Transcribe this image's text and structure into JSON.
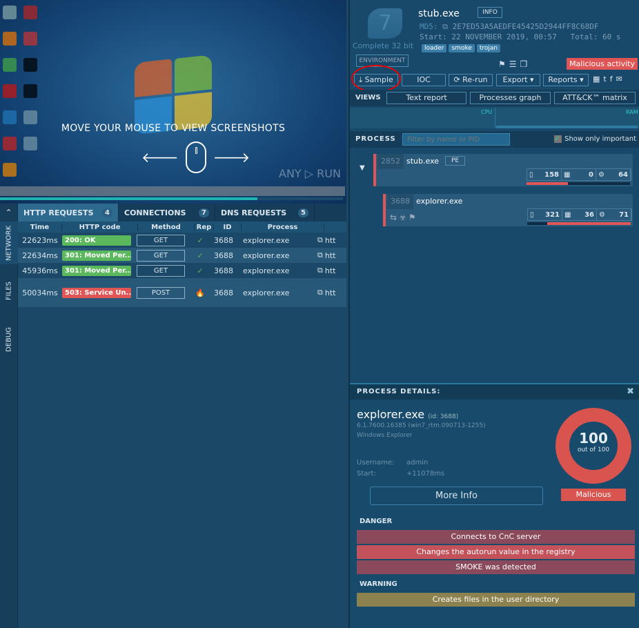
{
  "screenshot": {
    "overlay_text": "MOVE YOUR MOUSE TO VIEW SCREENSHOTS",
    "watermark": "ANY RUN",
    "progress_percent": 75
  },
  "sidebar": {
    "collapse_icon": "chevron-up-icon",
    "items": [
      {
        "label": "NETWORK"
      },
      {
        "label": "FILES"
      },
      {
        "label": "DEBUG"
      }
    ]
  },
  "network": {
    "tabs": [
      {
        "label": "HTTP REQUESTS",
        "count": "4"
      },
      {
        "label": "CONNECTIONS",
        "count": "7"
      },
      {
        "label": "DNS REQUESTS",
        "count": "5"
      }
    ],
    "columns": [
      "Time",
      "HTTP code",
      "Method",
      "Rep",
      "ID",
      "Process"
    ],
    "rows": [
      {
        "time": "22623ms",
        "code": "200: OK",
        "code_color": "#5cb85c",
        "method": "GET",
        "rep": "ok",
        "id": "3688",
        "process": "explorer.exe",
        "url": "htt"
      },
      {
        "time": "22634ms",
        "code": "301: Moved Per...",
        "code_color": "#5cb85c",
        "method": "GET",
        "rep": "ok",
        "id": "3688",
        "process": "explorer.exe",
        "url": "htt"
      },
      {
        "time": "45936ms",
        "code": "301: Moved Per...",
        "code_color": "#5cb85c",
        "method": "GET",
        "rep": "ok",
        "id": "3688",
        "process": "explorer.exe",
        "url": "htt"
      },
      {
        "time": "50034ms",
        "code": "503: Service Un...",
        "code_color": "#e05555",
        "method": "POST",
        "rep": "danger",
        "id": "3688",
        "process": "explorer.exe",
        "url": "htt"
      }
    ]
  },
  "task": {
    "os_version": "7",
    "os_label": "Complete 32 bit",
    "env_button": "ENVIRONMENT",
    "filename": "stub.exe",
    "info_button": "INFO",
    "md5_label": "MD5:",
    "md5": "2E7ED53A5AEDFE45425D2944FF8C68DF",
    "start_label": "Start:",
    "start": "22 NOVEMBER 2019, 00:57",
    "total_label": "Total:",
    "total": "60 s",
    "tags": [
      "loader",
      "smoke",
      "trojan"
    ],
    "verdict": "Malicious activity",
    "verdict_color": "#e05555",
    "buttons": {
      "sample": "Sample",
      "ioc": "IOC",
      "rerun": "Re-run",
      "export": "Export",
      "reports": "Reports"
    },
    "views_label": "VIEWS",
    "views": [
      "Text report",
      "Processes graph",
      "ATT&CK™ matrix"
    ],
    "cpu_label": "CPU",
    "ram_label": "RAM"
  },
  "process": {
    "label": "PROCESS",
    "filter_placeholder": "Filter by name or PID",
    "show_important": "Show only important",
    "show_important_checked": true,
    "items": [
      {
        "pid": "2852",
        "name": "stub.exe",
        "badge": "PE",
        "files": "158",
        "registry": "0",
        "modules": "64",
        "threat": 0.4
      },
      {
        "pid": "3688",
        "name": "explorer.exe",
        "files": "321",
        "registry": "36",
        "modules": "71",
        "threat": 0.81
      }
    ]
  },
  "details": {
    "title": "PROCESS DETAILS:",
    "name": "explorer.exe",
    "id": "(id: 3688)",
    "version": "6.1.7600.16385 (win7_rtm.090713-1255)",
    "description": "Windows Explorer",
    "username_label": "Username:",
    "username": "admin",
    "start_label": "Start:",
    "start": "+11078ms",
    "more_info": "More Info",
    "score": "100",
    "score_of": "out of 100",
    "verdict": "Malicious",
    "danger_label": "DANGER",
    "danger": [
      "Connects to CnC server",
      "Changes the autorun value in the registry",
      "SMOKE was detected"
    ],
    "warning_label": "WARNING",
    "warning": [
      "Creates files in the user directory"
    ]
  }
}
